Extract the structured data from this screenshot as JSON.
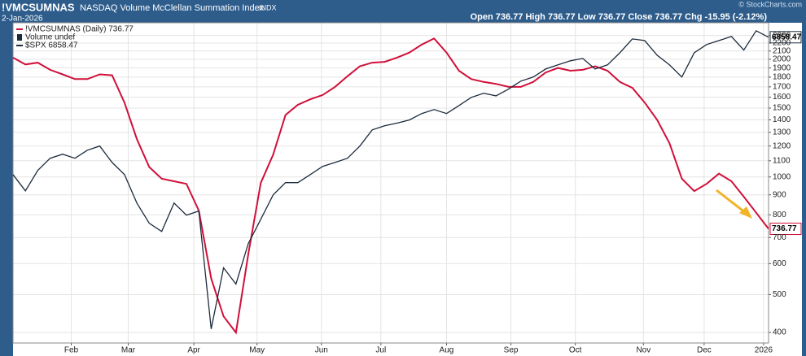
{
  "chart_data": {
    "type": "line",
    "title": "!VMCSUMNAS",
    "subtitle": "NASDAQ Volume McClellan Summation Index",
    "exchange": "INDX",
    "date": "2-Jan-2026",
    "quote": "Open 736.77 High 736.77 Low 736.77 Close 736.77 Chg -15.95 (-2.12%)",
    "credit": "© StockCharts.com",
    "legend_extra": "Volume undef",
    "log_scale": true,
    "grid": true,
    "legend": "top-left",
    "xlim": [
      0,
      61
    ],
    "xticks": [
      {
        "value": 4.7,
        "label": "Feb"
      },
      {
        "value": 9.3,
        "label": "Mar"
      },
      {
        "value": 14.6,
        "label": "Apr"
      },
      {
        "value": 19.7,
        "label": "May"
      },
      {
        "value": 24.9,
        "label": "Jun"
      },
      {
        "value": 29.7,
        "label": "Jul"
      },
      {
        "value": 35,
        "label": "Aug"
      },
      {
        "value": 40.2,
        "label": "Sep"
      },
      {
        "value": 45.4,
        "label": "Oct"
      },
      {
        "value": 50.9,
        "label": "Nov"
      },
      {
        "value": 55.8,
        "label": "Dec"
      },
      {
        "value": 60.6,
        "label": "2026"
      }
    ],
    "ylim": [
      376,
      2480
    ],
    "yticks": [
      400,
      500,
      600,
      700,
      800,
      900,
      1000,
      1100,
      1200,
      1300,
      1400,
      1500,
      1600,
      1700,
      1800,
      1900,
      2000,
      2100,
      2200,
      2300
    ],
    "y2lim": [
      4950,
      6965
    ],
    "series": [
      {
        "name": "!VMCSUMNAS (Daily) 736.77",
        "color": "#d0103a",
        "values": [
          2020,
          1940,
          1960,
          1880,
          1830,
          1780,
          1780,
          1830,
          1820,
          1550,
          1250,
          1060,
          990,
          975,
          960,
          820,
          550,
          440,
          400,
          635,
          965,
          1140,
          1440,
          1530,
          1580,
          1620,
          1700,
          1810,
          1920,
          1960,
          1970,
          2020,
          2080,
          2180,
          2260,
          2080,
          1870,
          1780,
          1750,
          1730,
          1700,
          1700,
          1750,
          1850,
          1900,
          1870,
          1880,
          1920,
          1870,
          1750,
          1690,
          1550,
          1400,
          1220,
          990,
          920,
          960,
          1020,
          975,
          890,
          810,
          736.77
        ]
      },
      {
        "name": "$SPX 6858.47",
        "color": "#1c2b3c",
        "axis": "y2",
        "values": [
          5924,
          5822,
          5950,
          6028,
          6054,
          6028,
          6080,
          6107,
          6001,
          5924,
          5747,
          5624,
          5575,
          5747,
          5673,
          5698,
          5025,
          5363,
          5271,
          5504,
          5648,
          5797,
          5873,
          5873,
          5924,
          5976,
          6001,
          6028,
          6107,
          6213,
          6240,
          6258,
          6279,
          6322,
          6349,
          6322,
          6376,
          6432,
          6460,
          6443,
          6489,
          6545,
          6573,
          6630,
          6659,
          6688,
          6705,
          6630,
          6659,
          6746,
          6846,
          6834,
          6728,
          6659,
          6573,
          6746,
          6805,
          6834,
          6864,
          6765,
          6906,
          6858.47
        ]
      }
    ]
  }
}
